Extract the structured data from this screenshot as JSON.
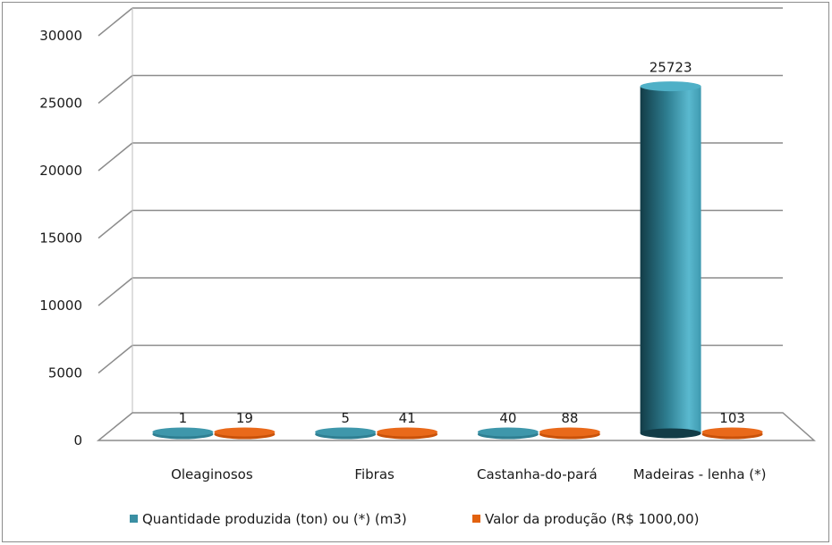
{
  "chart_data": {
    "type": "bar",
    "categories": [
      "Oleaginosos",
      "Fibras",
      "Castanha-do-pará",
      "Madeiras - lenha (*)"
    ],
    "series": [
      {
        "name": "Quantidade produzida (ton) ou (*) (m3)",
        "values": [
          1,
          5,
          40,
          25723
        ],
        "color": "#3a8fa3"
      },
      {
        "name": "Valor da produção (R$ 1000,00)",
        "values": [
          19,
          41,
          88,
          103
        ],
        "color": "#e2620f"
      }
    ],
    "y_ticks": [
      "0",
      "5000",
      "10000",
      "15000",
      "20000",
      "25000",
      "30000"
    ],
    "ylim": [
      0,
      30000
    ],
    "grid": true,
    "legend_position": "bottom",
    "title": "",
    "xlabel": "",
    "ylabel": ""
  }
}
